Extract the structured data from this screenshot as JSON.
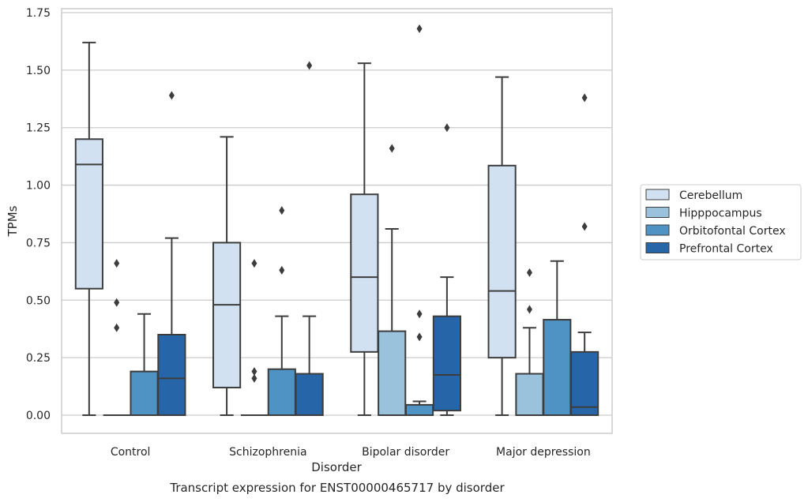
{
  "chart_data": {
    "type": "box",
    "caption": "Transcript expression for ENST00000465717 by disorder",
    "xlabel": "Disorder",
    "ylabel": "TPMs",
    "ylim": [
      -0.08,
      1.76
    ],
    "yticks": [
      "0.00",
      "0.25",
      "0.50",
      "0.75",
      "1.00",
      "1.25",
      "1.50",
      "1.75"
    ],
    "grid": "horizontal",
    "legend_position": "right",
    "categories": [
      "Control",
      "Schizophrenia",
      "Bipolar disorder",
      "Major depression"
    ],
    "series": [
      {
        "name": "Cerebellum",
        "color": "#d2e1f1",
        "boxes": [
          {
            "whislo": 0.0,
            "q1": 0.55,
            "med": 1.09,
            "q3": 1.2,
            "whishi": 1.62,
            "fliers": []
          },
          {
            "whislo": 0.0,
            "q1": 0.12,
            "med": 0.48,
            "q3": 0.75,
            "whishi": 1.21,
            "fliers": []
          },
          {
            "whislo": 0.0,
            "q1": 0.275,
            "med": 0.6,
            "q3": 0.96,
            "whishi": 1.53,
            "fliers": []
          },
          {
            "whislo": 0.0,
            "q1": 0.25,
            "med": 0.54,
            "q3": 1.085,
            "whishi": 1.47,
            "fliers": []
          }
        ]
      },
      {
        "name": "Hipppocampus",
        "color": "#9ac2dc",
        "boxes": [
          {
            "whislo": 0.0,
            "q1": 0.0,
            "med": 0.0,
            "q3": 0.0,
            "whishi": 0.0,
            "fliers": [
              0.38,
              0.49,
              0.66
            ]
          },
          {
            "whislo": 0.0,
            "q1": 0.0,
            "med": 0.0,
            "q3": 0.0,
            "whishi": 0.0,
            "fliers": [
              0.16,
              0.19,
              0.66
            ]
          },
          {
            "whislo": 0.0,
            "q1": 0.0,
            "med": 0.0,
            "q3": 0.365,
            "whishi": 0.81,
            "fliers": [
              1.16
            ]
          },
          {
            "whislo": 0.0,
            "q1": 0.0,
            "med": 0.0,
            "q3": 0.18,
            "whishi": 0.38,
            "fliers": [
              0.46,
              0.62
            ]
          }
        ]
      },
      {
        "name": "Orbitofontal Cortex",
        "color": "#4f92c4",
        "boxes": [
          {
            "whislo": 0.0,
            "q1": 0.0,
            "med": 0.0,
            "q3": 0.19,
            "whishi": 0.44,
            "fliers": []
          },
          {
            "whislo": 0.0,
            "q1": 0.0,
            "med": 0.0,
            "q3": 0.2,
            "whishi": 0.43,
            "fliers": [
              0.63,
              0.89
            ]
          },
          {
            "whislo": 0.0,
            "q1": 0.0,
            "med": 0.0,
            "q3": 0.045,
            "whishi": 0.06,
            "fliers": [
              0.34,
              0.44,
              1.68
            ]
          },
          {
            "whislo": 0.0,
            "q1": 0.0,
            "med": 0.0,
            "q3": 0.415,
            "whishi": 0.67,
            "fliers": []
          }
        ]
      },
      {
        "name": "Prefrontal Cortex",
        "color": "#2565a8",
        "boxes": [
          {
            "whislo": 0.0,
            "q1": 0.0,
            "med": 0.16,
            "q3": 0.35,
            "whishi": 0.77,
            "fliers": [
              1.39
            ]
          },
          {
            "whislo": 0.0,
            "q1": 0.0,
            "med": 0.0,
            "q3": 0.18,
            "whishi": 0.43,
            "fliers": [
              1.52
            ]
          },
          {
            "whislo": 0.0,
            "q1": 0.02,
            "med": 0.175,
            "q3": 0.43,
            "whishi": 0.6,
            "fliers": [
              1.25
            ]
          },
          {
            "whislo": 0.0,
            "q1": 0.0,
            "med": 0.035,
            "q3": 0.275,
            "whishi": 0.36,
            "fliers": [
              0.82,
              1.38
            ]
          }
        ]
      }
    ]
  }
}
